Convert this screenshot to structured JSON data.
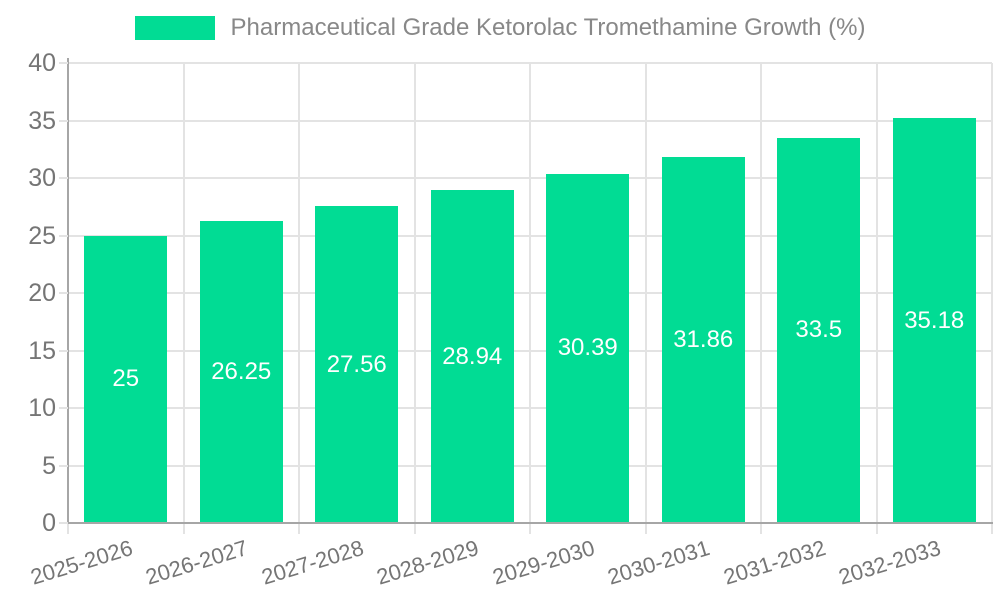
{
  "legend": {
    "position": "top-center",
    "items": [
      {
        "label": "Pharmaceutical Grade Ketorolac Tromethamine Growth (%)",
        "color": "#01DC94"
      }
    ]
  },
  "chart_data": {
    "type": "bar",
    "title": "Pharmaceutical Grade Ketorolac Tromethamine Growth (%)",
    "categories": [
      "2025-2026",
      "2026-2027",
      "2027-2028",
      "2028-2029",
      "2029-2030",
      "2030-2031",
      "2031-2032",
      "2032-2033"
    ],
    "values": [
      25,
      26.25,
      27.56,
      28.94,
      30.39,
      31.86,
      33.5,
      35.18
    ],
    "bar_labels": [
      "25",
      "26.25",
      "27.56",
      "28.94",
      "30.39",
      "31.86",
      "33.5",
      "35.18"
    ],
    "xlabel": "",
    "ylabel": "",
    "ylim": [
      0,
      40
    ],
    "y_ticks": [
      0,
      5,
      10,
      15,
      20,
      25,
      30,
      35,
      40
    ],
    "grid": true,
    "legend_position": "top",
    "colors": {
      "bar": "#01DC94",
      "bar_label": "#FFFFFF",
      "grid": "#E3E3E3",
      "axis": "#A6A6A6",
      "tick_text": "#757575",
      "title_text": "#888888"
    }
  }
}
